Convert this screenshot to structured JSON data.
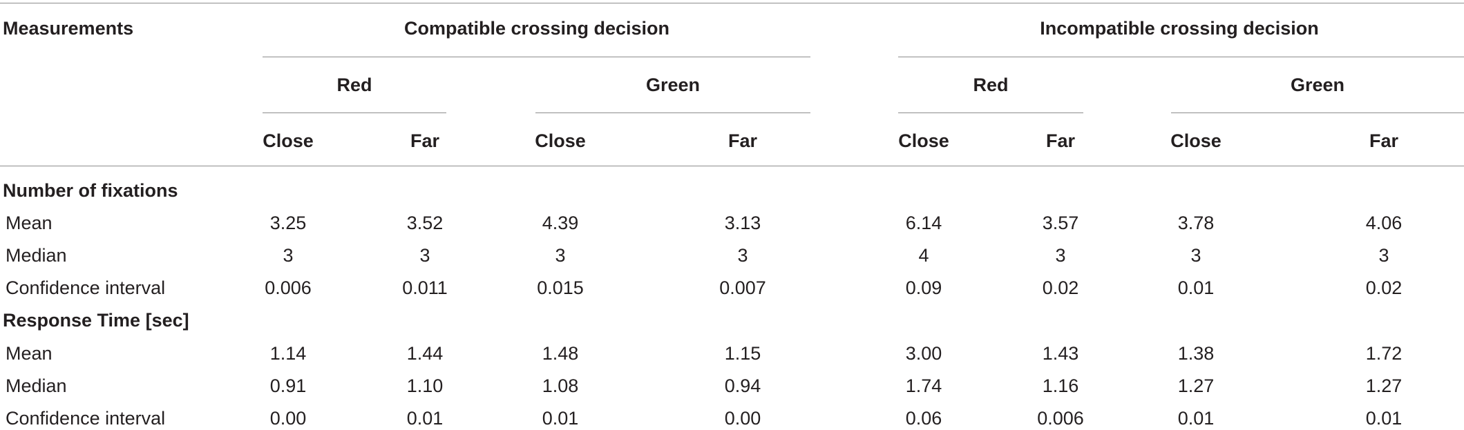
{
  "header": {
    "measurements": "Measurements",
    "groups": [
      "Compatible crossing decision",
      "Incompatible crossing decision"
    ],
    "colors": [
      "Red",
      "Green",
      "Red",
      "Green"
    ],
    "distances": [
      "Close",
      "Far",
      "Close",
      "Far",
      "Close",
      "Far",
      "Close",
      "Far"
    ]
  },
  "sections": [
    {
      "title": "Number of fixations",
      "rows": [
        {
          "label": "Mean",
          "values": [
            "3.25",
            "3.52",
            "4.39",
            "3.13",
            "6.14",
            "3.57",
            "3.78",
            "4.06"
          ]
        },
        {
          "label": "Median",
          "values": [
            "3",
            "3",
            "3",
            "3",
            "4",
            "3",
            "3",
            "3"
          ]
        },
        {
          "label": "Confidence interval",
          "values": [
            "0.006",
            "0.011",
            "0.015",
            "0.007",
            "0.09",
            "0.02",
            "0.01",
            "0.02"
          ]
        }
      ]
    },
    {
      "title": "Response Time [sec]",
      "rows": [
        {
          "label": "Mean",
          "values": [
            "1.14",
            "1.44",
            "1.48",
            "1.15",
            "3.00",
            "1.43",
            "1.38",
            "1.72"
          ]
        },
        {
          "label": "Median",
          "values": [
            "0.91",
            "1.10",
            "1.08",
            "0.94",
            "1.74",
            "1.16",
            "1.27",
            "1.27"
          ]
        },
        {
          "label": "Confidence interval",
          "values": [
            "0.00",
            "0.01",
            "0.01",
            "0.00",
            "0.06",
            "0.006",
            "0.01",
            "0.01"
          ]
        }
      ]
    }
  ]
}
